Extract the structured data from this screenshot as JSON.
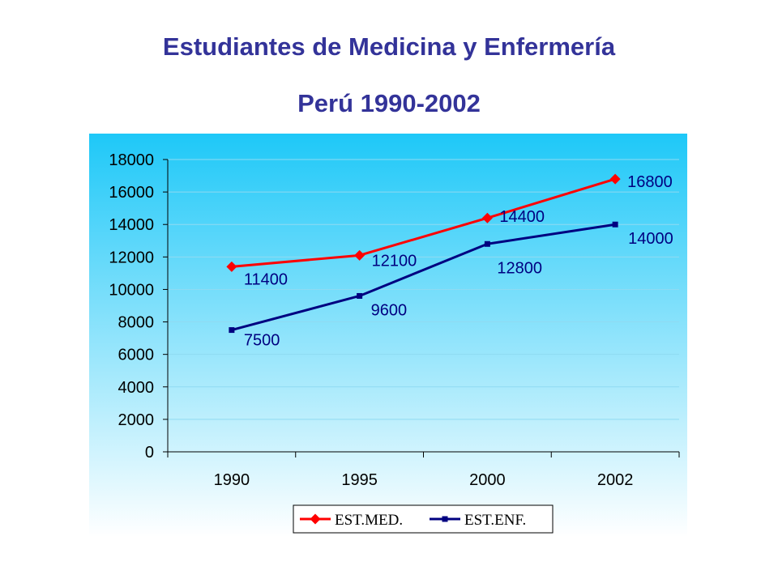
{
  "header": {
    "title": "Estudiantes de Medicina y Enfermería",
    "subtitle": "Perú 1990-2002"
  },
  "colors": {
    "med": "#ff0000",
    "enf": "#000080",
    "plot_bg_top": "#1ec8f8",
    "plot_bg_bottom": "#ffffff",
    "axis": "#000000"
  },
  "chart_data": {
    "type": "line",
    "title": "Estudiantes de Medicina y Enfermería",
    "subtitle": "Perú 1990-2002",
    "categories": [
      "1990",
      "1995",
      "2000",
      "2002"
    ],
    "ylim": [
      0,
      18000
    ],
    "yticks": [
      "0",
      "2000",
      "4000",
      "6000",
      "8000",
      "10000",
      "12000",
      "14000",
      "16000",
      "18000"
    ],
    "grid": true,
    "legend_position": "bottom",
    "series": [
      {
        "name": "EST.MED.",
        "values": [
          11400,
          12100,
          14400,
          16800
        ],
        "labels": [
          "11400",
          "12100",
          "14400",
          "16800"
        ],
        "marker": "diamond",
        "color": "#ff0000"
      },
      {
        "name": "EST.ENF.",
        "values": [
          7500,
          9600,
          12800,
          14000
        ],
        "labels": [
          "7500",
          "9600",
          "12800",
          "14000"
        ],
        "marker": "square",
        "color": "#000080"
      }
    ]
  }
}
